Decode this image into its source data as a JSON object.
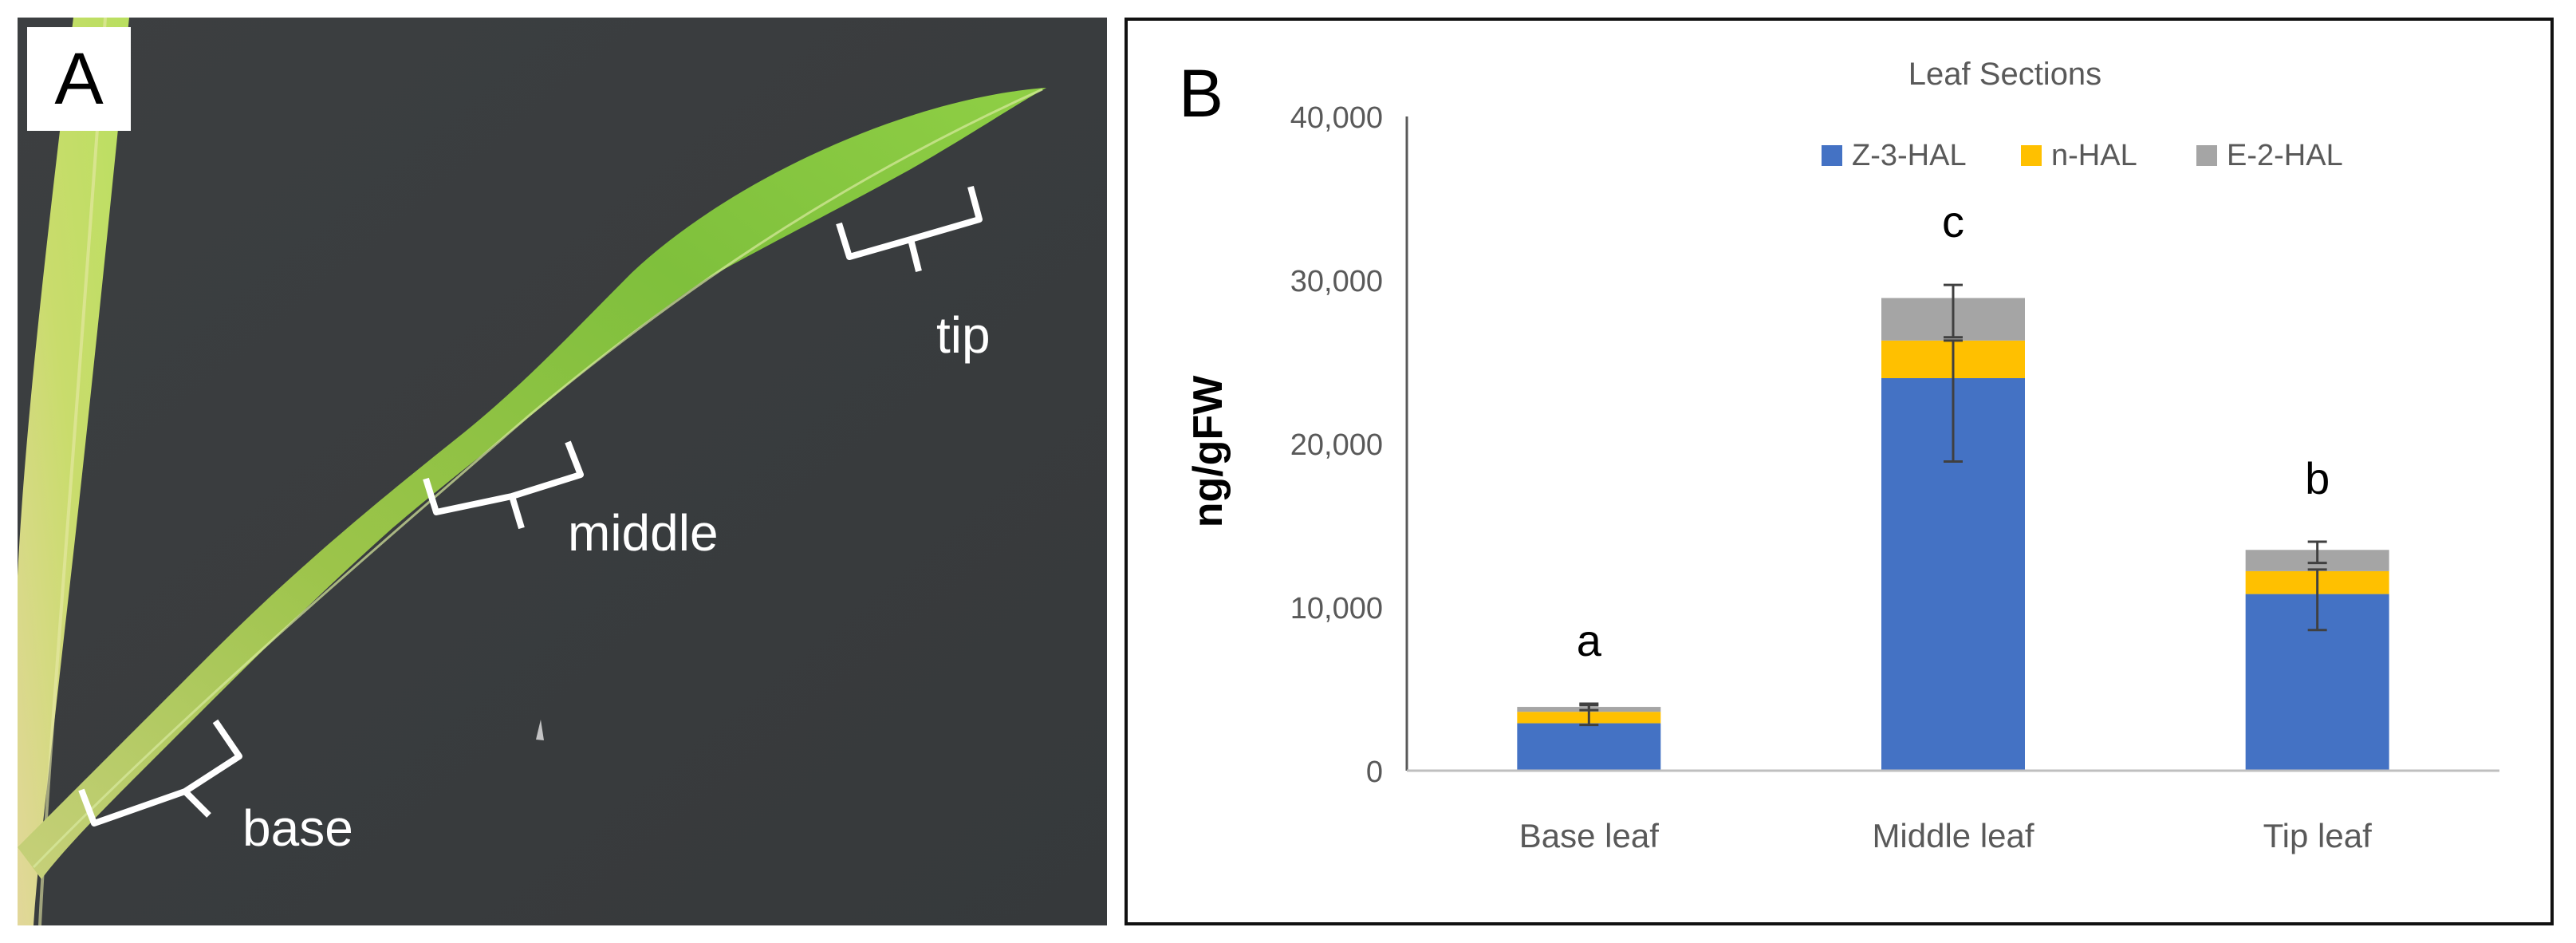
{
  "figure": {
    "panel_a_letter": "A",
    "panel_b_letter": "B",
    "photo_labels": {
      "base": "base",
      "middle": "middle",
      "tip": "tip"
    }
  },
  "chart_data": {
    "type": "bar",
    "stacked": true,
    "title": "Leaf Sections",
    "xlabel": "",
    "ylabel": "ng/gFW",
    "categories": [
      "Base leaf",
      "Middle leaf",
      "Tip leaf"
    ],
    "series": [
      {
        "name": "Z-3-HAL",
        "color": "#4472c4",
        "values": [
          2900,
          24000,
          10800
        ]
      },
      {
        "name": "n-HAL",
        "color": "#ffc000",
        "values": [
          700,
          2300,
          1400
        ]
      },
      {
        "name": "E-2-HAL",
        "color": "#a5a5a5",
        "values": [
          300,
          2600,
          1300
        ]
      }
    ],
    "error_bars": [
      {
        "category": "Base leaf",
        "center": 3400,
        "low": 2800,
        "high": 4000
      },
      {
        "category": "Base leaf",
        "center": 3900,
        "low": 3700,
        "high": 4100
      },
      {
        "category": "Middle leaf",
        "center": 24000,
        "low": 18900,
        "high": 26300
      },
      {
        "category": "Middle leaf",
        "center": 28900,
        "low": 26500,
        "high": 29700
      },
      {
        "category": "Tip leaf",
        "center": 10800,
        "low": 8600,
        "high": 12300
      },
      {
        "category": "Tip leaf",
        "center": 13400,
        "low": 12700,
        "high": 14000
      }
    ],
    "significance_letters": [
      "a",
      "c",
      "b"
    ],
    "ylim": [
      0,
      40000
    ],
    "yticks": [
      0,
      10000,
      20000,
      30000,
      40000
    ],
    "ytick_labels": [
      "0",
      "10,000",
      "20,000",
      "30,000",
      "40,000"
    ],
    "legend_position": "top",
    "grid": false
  }
}
